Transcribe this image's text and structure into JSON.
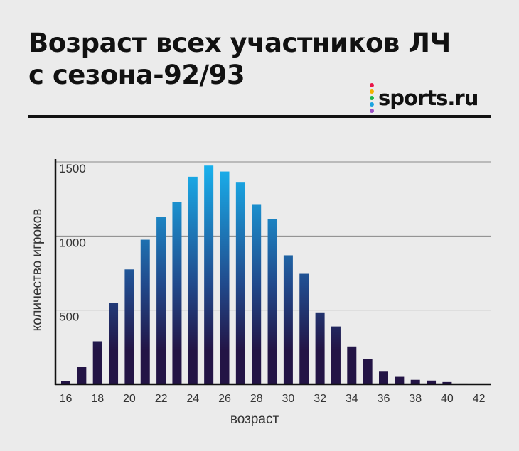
{
  "header": {
    "title_line1": "Возраст всех участников ЛЧ",
    "title_line2": "с сезона-92/93"
  },
  "logo": {
    "text": "sports.ru",
    "dot_colors": [
      "#e8174a",
      "#f2b100",
      "#1fb54a",
      "#1ca3e0",
      "#9a4fc4"
    ]
  },
  "colors": {
    "bar_top": "#18b4f0",
    "bar_mid": "#214a8c",
    "bar_bottom": "#231445",
    "grid": "#888888",
    "axis": "#111111",
    "text": "#333333"
  },
  "chart_data": {
    "type": "bar",
    "xlabel": "возраст",
    "ylabel": "количество игроков",
    "ylim": [
      0,
      1500
    ],
    "yticks": [
      500,
      1000,
      1500
    ],
    "xticks": [
      16,
      18,
      20,
      22,
      24,
      26,
      28,
      30,
      32,
      34,
      36,
      38,
      40,
      42
    ],
    "categories": [
      16,
      17,
      18,
      19,
      20,
      21,
      22,
      23,
      24,
      25,
      26,
      27,
      28,
      29,
      30,
      31,
      32,
      33,
      34,
      35,
      36,
      37,
      38,
      39,
      40,
      41,
      42
    ],
    "values": [
      20,
      115,
      290,
      550,
      775,
      975,
      1130,
      1230,
      1400,
      1475,
      1435,
      1365,
      1215,
      1115,
      870,
      745,
      485,
      390,
      255,
      170,
      85,
      50,
      30,
      25,
      15,
      5,
      3
    ],
    "grid": true
  }
}
